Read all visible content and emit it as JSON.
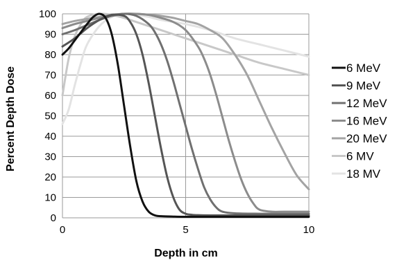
{
  "chart_data": {
    "type": "line",
    "title": "",
    "xlabel": "Depth in cm",
    "ylabel": "Percent Depth Dose",
    "xlim": [
      0,
      10
    ],
    "ylim": [
      0,
      100
    ],
    "x_ticks": [
      "0",
      "5",
      "10"
    ],
    "y_ticks": [
      "0",
      "10",
      "20",
      "30",
      "40",
      "50",
      "60",
      "70",
      "80",
      "90",
      "100"
    ],
    "grid": "horizontal lines every 10, vertical lines at 5 and 10",
    "legend_position": "right",
    "series": [
      {
        "name": "6 MeV",
        "color": "#111111",
        "x": [
          0,
          0.25,
          0.5,
          0.75,
          1.0,
          1.25,
          1.5,
          1.75,
          2.0,
          2.25,
          2.5,
          2.75,
          3.0,
          3.25,
          3.5,
          3.75,
          4.0,
          4.5,
          5,
          6,
          7,
          8,
          9,
          10
        ],
        "y": [
          80,
          83,
          87,
          91,
          95,
          98.5,
          100,
          98,
          90,
          75,
          55,
          35,
          18,
          8,
          3,
          1.2,
          0.8,
          0.6,
          0.5,
          0.5,
          0.5,
          0.5,
          0.5,
          0.5
        ]
      },
      {
        "name": "9 MeV",
        "color": "#555555",
        "x": [
          0,
          0.5,
          1.0,
          1.5,
          2.0,
          2.5,
          2.75,
          3.0,
          3.25,
          3.5,
          3.75,
          4.0,
          4.25,
          4.5,
          4.75,
          5.0,
          5.25,
          5.5,
          6,
          7,
          8,
          9,
          10
        ],
        "y": [
          84,
          88,
          93,
          97,
          99.5,
          99,
          96,
          90,
          80,
          66,
          50,
          34,
          20,
          10,
          4,
          2,
          1.5,
          1.3,
          1.2,
          1.2,
          1.2,
          1.2,
          1.2
        ]
      },
      {
        "name": "12 MeV",
        "color": "#707070",
        "x": [
          0,
          0.5,
          1.0,
          1.5,
          2.0,
          2.5,
          3.0,
          3.5,
          3.75,
          4.0,
          4.25,
          4.5,
          4.75,
          5.0,
          5.25,
          5.5,
          5.75,
          6.0,
          6.25,
          6.5,
          7,
          8,
          9,
          10
        ],
        "y": [
          90,
          92,
          94.5,
          97,
          99,
          100,
          99,
          95,
          91,
          85,
          77,
          67,
          56,
          45,
          34,
          24,
          15,
          9,
          5,
          3,
          2.2,
          2,
          2,
          2
        ]
      },
      {
        "name": "16 MeV",
        "color": "#8c8c8c",
        "x": [
          0,
          0.5,
          1.0,
          1.5,
          2.0,
          2.5,
          3.0,
          3.5,
          4.0,
          4.5,
          5.0,
          5.5,
          5.75,
          6.0,
          6.25,
          6.5,
          6.75,
          7.0,
          7.25,
          7.5,
          7.75,
          8.0,
          8.5,
          9,
          10
        ],
        "y": [
          93,
          95,
          96.5,
          98,
          99,
          100,
          100,
          99.5,
          98,
          96,
          92,
          84,
          78,
          70,
          60,
          49,
          38,
          28,
          19,
          12,
          7,
          4,
          3,
          3,
          3
        ]
      },
      {
        "name": "20 MeV",
        "color": "#a3a3a3",
        "x": [
          0,
          0.5,
          1.0,
          1.5,
          2.0,
          2.5,
          3.0,
          3.5,
          4.0,
          4.5,
          5.0,
          5.5,
          6.0,
          6.5,
          7.0,
          7.5,
          8.0,
          8.5,
          9.0,
          9.5,
          10
        ],
        "y": [
          95,
          96.5,
          97.5,
          98.5,
          99.5,
          100,
          100,
          99.5,
          99,
          98,
          96.5,
          95,
          92,
          88,
          80,
          70,
          57,
          44,
          32,
          21,
          14
        ]
      },
      {
        "name": "6 MV",
        "color": "#c8c8c8",
        "x": [
          0,
          0.25,
          0.5,
          0.75,
          1.0,
          1.5,
          2.0,
          2.5,
          3,
          4,
          5,
          6,
          7,
          8,
          9,
          10
        ],
        "y": [
          60,
          78,
          89,
          95,
          98.5,
          100,
          99.5,
          98,
          96,
          92,
          88,
          84,
          80,
          76,
          73,
          70
        ]
      },
      {
        "name": "18 MV",
        "color": "#e3e3e3",
        "x": [
          0,
          0.25,
          0.5,
          0.75,
          1.0,
          1.5,
          2.0,
          2.5,
          3.0,
          3.5,
          4,
          5,
          6,
          7,
          8,
          9,
          10
        ],
        "y": [
          46,
          53,
          65,
          76,
          85,
          94,
          98.5,
          100,
          99.5,
          98.5,
          97,
          95,
          92,
          88,
          85,
          82,
          79
        ]
      }
    ]
  }
}
